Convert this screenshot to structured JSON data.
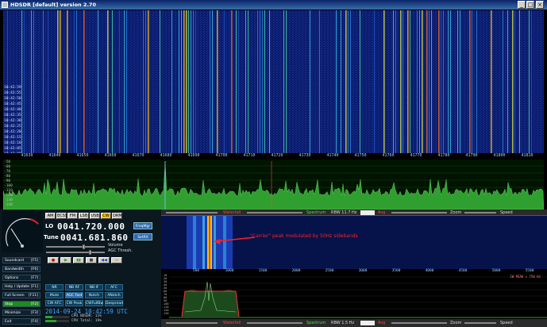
{
  "window": {
    "title": "HDSDR [default]  version 2.70",
    "minimize": "_",
    "maximize": "□",
    "close": "×"
  },
  "waterfall": {
    "freq_ticks": [
      "41630",
      "41640",
      "41650",
      "41660",
      "41670",
      "41680",
      "41690",
      "41700",
      "41710",
      "41720",
      "41730",
      "41740",
      "41750",
      "41760",
      "41770",
      "41780",
      "41790",
      "41800",
      "41810"
    ],
    "time_labels": [
      "10:42:59",
      "10:42:55",
      "10:42:50",
      "10:42:45",
      "10:42:40",
      "10:42:35",
      "10:42:30",
      "10:42:25",
      "10:42:20",
      "10:42:15",
      "10:42:10",
      "10:42:05",
      "10:42:00"
    ]
  },
  "spectrum": {
    "db_labels": [
      "-50",
      "-60",
      "-70",
      "-80",
      "-90",
      "-100",
      "-110",
      "-120",
      "-130",
      "-140"
    ]
  },
  "left_panel": {
    "buttons": [
      {
        "label": "Soundcard",
        "key": "[F5]"
      },
      {
        "label": "Bandwidth",
        "key": "[F6]"
      },
      {
        "label": "Options",
        "key": "[F7]"
      },
      {
        "label": "Help / Update",
        "key": "[F1]"
      },
      {
        "label": "Full Screen",
        "key": "[F11]"
      },
      {
        "label": "Stop",
        "key": "[F2]"
      },
      {
        "label": "Minimize",
        "key": "[F3]"
      },
      {
        "label": "Exit",
        "key": "[F4]"
      }
    ],
    "meter_label": "S-meter",
    "mode_buttons": [
      "AM",
      "ECSS",
      "FM",
      "LSB",
      "USB",
      "CW",
      "DRM"
    ],
    "lo_label": "LO",
    "lo_value": "0041.720.000",
    "tune_label": "Tune",
    "tune_value": "0041.681.860",
    "freqmgr": "FreqMgr",
    "setrx": "SetRX",
    "volume": "Volume",
    "agc_thresh": "AGC Thresh.",
    "transport": [
      "●",
      "▶",
      "▮▮",
      "■",
      "◀◀",
      "∞"
    ],
    "dsp_row1": [
      "NR",
      "NB RF",
      "NB IF",
      "AFC"
    ],
    "dsp_row2": [
      "Mute",
      "AGC Fast",
      "Notch",
      "ANotch"
    ],
    "dsp_row3": [
      "CW AFC",
      "CW Peak",
      "CWFullBw",
      "Deepread"
    ],
    "datetime": "2014-09-24  10:42:59 UTC",
    "cpu1": "CPU HDSDR: 11%",
    "cpu2": "CPU Total: 19%"
  },
  "zoom_panel": {
    "bar_waterfall": "Waterfall",
    "bar_spectrum": "Spectrum",
    "rbw_top": "RBW 11.7 Hz",
    "rbw_bottom": "RBW 1.5 Hz",
    "avg": "Avg",
    "zoom": "Zoom",
    "speed": "Speed",
    "annotation": "\"Carrier\" peak modulated by 50Hz sidebands",
    "zoom_ticks": [
      "500",
      "1000",
      "1500",
      "2000",
      "2500",
      "3000",
      "3500",
      "4000",
      "4500",
      "5000",
      "5500"
    ],
    "zoom_db": [
      "-10",
      "-20",
      "-30",
      "-40",
      "-50",
      "-60",
      "-70",
      "-80",
      "-90",
      "-100",
      "-110",
      "-120",
      "-130"
    ],
    "cw_readout": "CW PEAK = 750 Hz"
  },
  "colors": {
    "accent": "#0a246a",
    "spectrum_fill": "#2fa02f",
    "active_button": "#1f8a1f",
    "annotation": "#ff2020"
  }
}
